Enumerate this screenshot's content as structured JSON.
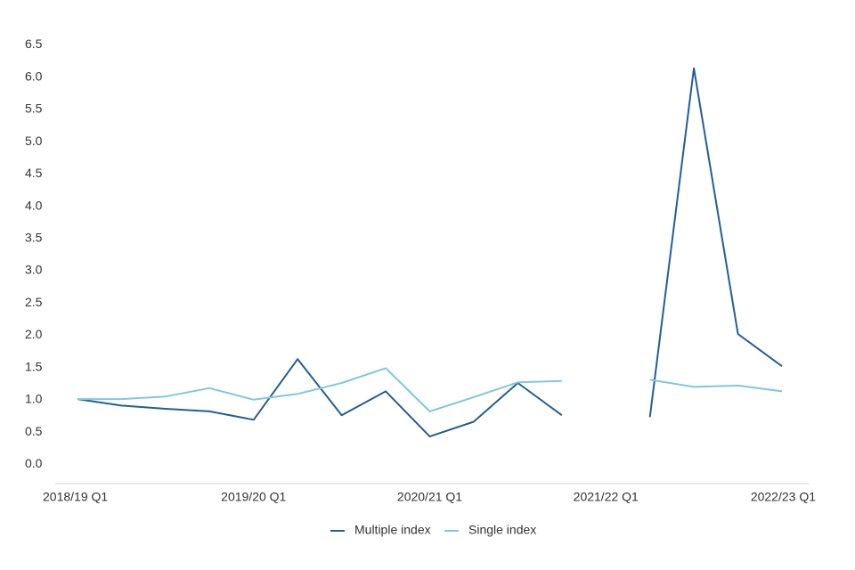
{
  "chart_data": {
    "type": "line",
    "categories": [
      "2018/19 Q1",
      null,
      null,
      null,
      "2019/20 Q1",
      null,
      null,
      null,
      "2020/21 Q1",
      null,
      null,
      null,
      "2021/22 Q1",
      null,
      null,
      null,
      "2022/23 Q1"
    ],
    "series": [
      {
        "name": "Multiple index",
        "color": "#245e94",
        "values": [
          1.01,
          0.91,
          0.86,
          0.82,
          0.69,
          1.63,
          0.76,
          1.13,
          0.43,
          0.66,
          1.26,
          0.76,
          null,
          0.73,
          6.14,
          2.02,
          1.52
        ]
      },
      {
        "name": "Single index",
        "color": "#7ec8df",
        "values": [
          1.01,
          1.01,
          1.05,
          1.18,
          1.0,
          1.09,
          1.26,
          1.49,
          0.82,
          1.04,
          1.27,
          1.29,
          null,
          1.31,
          1.2,
          1.22,
          1.13
        ]
      }
    ],
    "ylim": [
      -0.3,
      6.7
    ],
    "yticks": [
      {
        "value": 0,
        "label": "0.0"
      },
      0.5,
      {
        "value": 1,
        "label": "1.0"
      },
      1.5,
      {
        "value": 2,
        "label": "2.0"
      },
      2.5,
      {
        "value": 3,
        "label": "3.0"
      },
      3.5,
      {
        "value": 4,
        "label": "4.0"
      },
      4.5,
      {
        "value": 5,
        "label": "5.0"
      },
      5.5,
      {
        "value": 6,
        "label": "6.0"
      },
      6.5
    ],
    "grid": false,
    "legend": "bottom"
  }
}
